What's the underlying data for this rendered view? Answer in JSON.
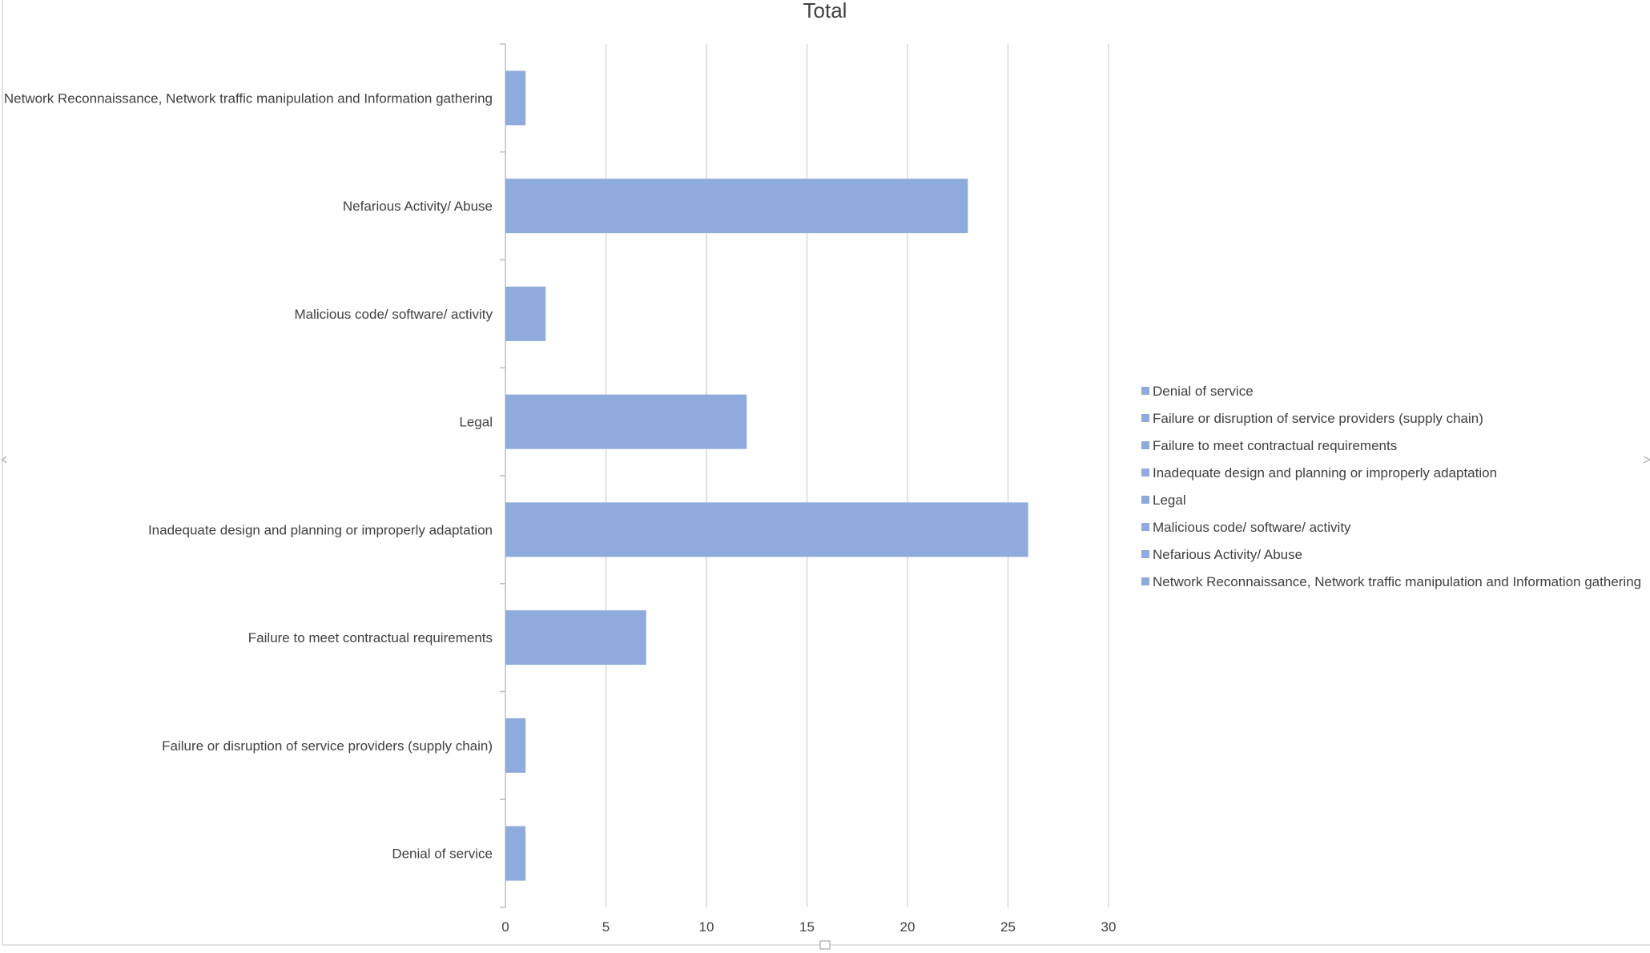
{
  "chart_data": {
    "type": "bar",
    "orientation": "horizontal",
    "title": "Total",
    "xlabel": "",
    "ylabel": "",
    "categories": [
      "Denial of service",
      "Failure or disruption of service providers (supply chain)",
      "Failure to meet contractual requirements",
      "Inadequate design and planning or improperly adaptation",
      "Legal",
      "Malicious code/ software/ activity",
      "Nefarious Activity/ Abuse",
      "Network Reconnaissance, Network traffic manipulation and Information gathering"
    ],
    "values": [
      1,
      1,
      7,
      26,
      12,
      2,
      23,
      1
    ],
    "xlim": [
      0,
      30
    ],
    "xticks": [
      "0",
      "5",
      "10",
      "15",
      "20",
      "25",
      "30"
    ],
    "grid": "vertical",
    "legend_position": "right",
    "colors": {
      "bar": "#8faadc",
      "grid": "#d9d9d9",
      "axis": "#bfbfbf",
      "text": "#404040"
    }
  }
}
